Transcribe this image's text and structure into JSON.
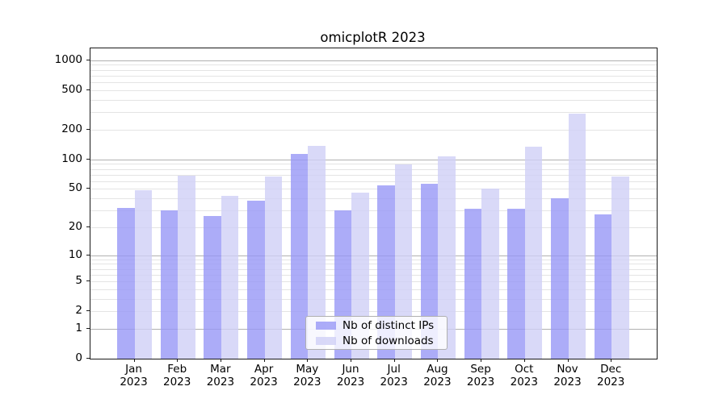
{
  "chart": {
    "background_color": "#ffffff",
    "spine_color": "#1a1a1a",
    "grid_color_major": "#b0b0b0",
    "grid_color_minor": "#e4e4e4"
  },
  "chart_data": {
    "type": "bar",
    "title": "omicplotR 2023",
    "categories": [
      "Jan 2023",
      "Feb 2023",
      "Mar 2023",
      "Apr 2023",
      "May 2023",
      "Jun 2023",
      "Jul 2023",
      "Aug 2023",
      "Sep 2023",
      "Oct 2023",
      "Nov 2023",
      "Dec 2023"
    ],
    "series": [
      {
        "name": "Nb of distinct IPs",
        "color": "#9797f6",
        "values": [
          32,
          30,
          26,
          38,
          113,
          30,
          54,
          56,
          31,
          31,
          40,
          27
        ]
      },
      {
        "name": "Nb of downloads",
        "color": "#cfcff6",
        "values": [
          48,
          68,
          42,
          67,
          138,
          46,
          89,
          107,
          50,
          135,
          291,
          67
        ]
      }
    ],
    "xlabel": "",
    "ylabel": "",
    "yscale": "log10(value+1)",
    "yticks": [
      0,
      1,
      2,
      5,
      10,
      20,
      50,
      100,
      200,
      500,
      1000
    ],
    "grid_major_at": [
      1,
      10,
      100,
      1000
    ],
    "ylim": [
      0,
      1317
    ],
    "grid": true,
    "legend_position": "lower center"
  }
}
